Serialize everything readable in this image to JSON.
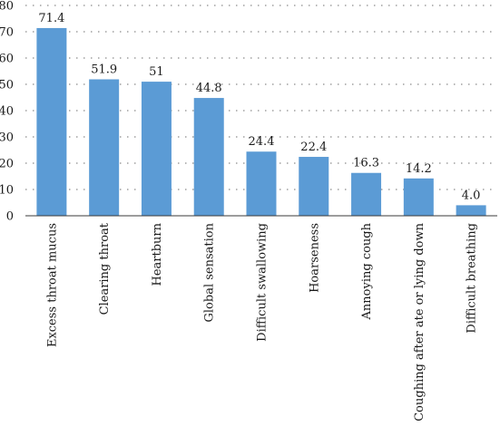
{
  "chart_data": {
    "type": "bar",
    "categories": [
      "Excess throat mucus",
      "Clearing throat",
      "Heartburn",
      "Global sensation",
      "Difficult swallowing",
      "Hoarseness",
      "Annoying cough",
      "Coughing after ate or lying down",
      "Difficult breathing"
    ],
    "values": [
      71.4,
      51.9,
      51,
      44.8,
      24.4,
      22.4,
      16.3,
      14.2,
      4.0
    ],
    "data_labels": [
      "71.4",
      "51.9",
      "51",
      "44.8",
      "24.4",
      "22.4",
      "16.3",
      "14.2",
      "4.0"
    ],
    "yticks": [
      0,
      10,
      20,
      30,
      40,
      50,
      60,
      70,
      80
    ],
    "ylim": [
      0,
      80
    ],
    "grid": "horizontal dotted",
    "legend": "none",
    "bar_color": "#5b9bd5",
    "title": "",
    "xlabel": "",
    "ylabel": ""
  }
}
